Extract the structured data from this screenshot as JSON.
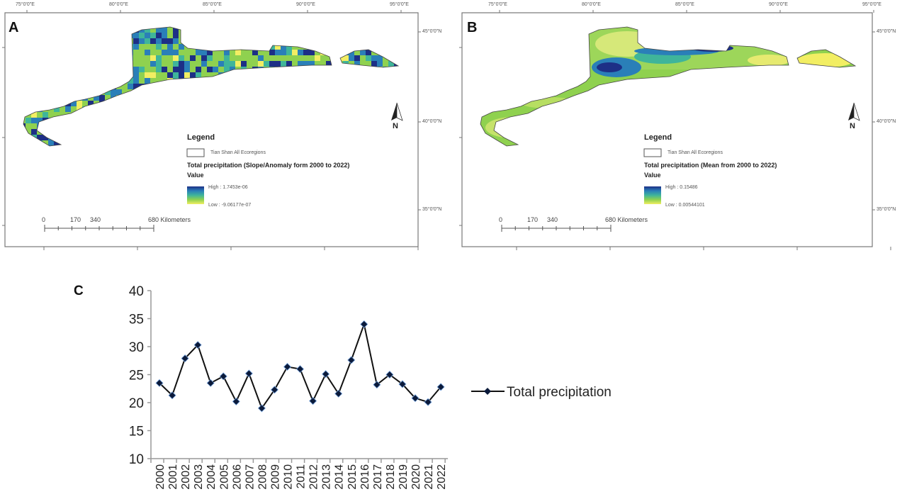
{
  "maps": [
    {
      "panel_label": "A",
      "lon_ticks": [
        "75°0'0\"E",
        "80°0'0\"E",
        "85°0'0\"E",
        "90°0'0\"E",
        "95°0'0\"E"
      ],
      "lat_ticks": [
        "45°0'0\"N",
        "40°0'0\"N",
        "35°0'0\"N"
      ],
      "north_label": "N",
      "legend": {
        "title": "Legend",
        "boundary_label": "Tian Shan All Ecoregions",
        "layer_title": "Total precipitation (Slope/Anomaly form 2000 to 2022)",
        "value_label": "Value",
        "high": "High : 1.7453e-06",
        "low": "Low : -9.06177e-07"
      },
      "scale": {
        "labels": [
          "0",
          "170",
          "340",
          "680 Kilometers"
        ]
      },
      "ramp_colors": [
        "#1d2f86",
        "#2a7fb8",
        "#3fb59a",
        "#8fd14f",
        "#f2ee63"
      ]
    },
    {
      "panel_label": "B",
      "lon_ticks": [
        "75°0'0\"E",
        "80°0'0\"E",
        "85°0'0\"E",
        "90°0'0\"E",
        "95°0'0\"E"
      ],
      "lat_ticks": [
        "45°0'0\"N",
        "40°0'0\"N",
        "35°0'0\"N"
      ],
      "north_label": "N",
      "legend": {
        "title": "Legend",
        "boundary_label": "Tian Shan All Ecoregions",
        "layer_title": "Total precipitation (Mean from 2000 to 2022)",
        "value_label": "Value",
        "high": "High : 0.15486",
        "low": "Low : 0.00544101"
      },
      "scale": {
        "labels": [
          "0",
          "170",
          "340",
          "680 Kilometers"
        ]
      },
      "ramp_colors": [
        "#1d2f86",
        "#2a7fb8",
        "#3fb59a",
        "#8fd14f",
        "#f2ee63"
      ]
    }
  ],
  "chart_data": {
    "panel_label": "C",
    "type": "line",
    "x": [
      "2000",
      "2001",
      "2002",
      "2003",
      "2004",
      "2005",
      "2006",
      "2007",
      "2008",
      "2009",
      "2010",
      "2011",
      "2012",
      "2013",
      "2014",
      "2015",
      "2016",
      "2017",
      "2018",
      "2019",
      "2020",
      "2021",
      "2022"
    ],
    "series": [
      {
        "name": "Total precipitation",
        "values": [
          23.5,
          21.3,
          27.9,
          30.3,
          23.5,
          24.7,
          20.2,
          25.2,
          19.0,
          22.3,
          26.4,
          26.0,
          20.3,
          25.1,
          21.6,
          27.6,
          34.0,
          23.2,
          25.0,
          23.3,
          20.8,
          20.1,
          22.8
        ],
        "color": "#111111",
        "marker": "diamond",
        "marker_color": "#0b1a3a"
      }
    ],
    "y_ticks": [
      "10",
      "15",
      "20",
      "25",
      "30",
      "35",
      "40"
    ],
    "ylim": [
      10,
      40
    ],
    "grid": false,
    "legend_position": "right"
  }
}
